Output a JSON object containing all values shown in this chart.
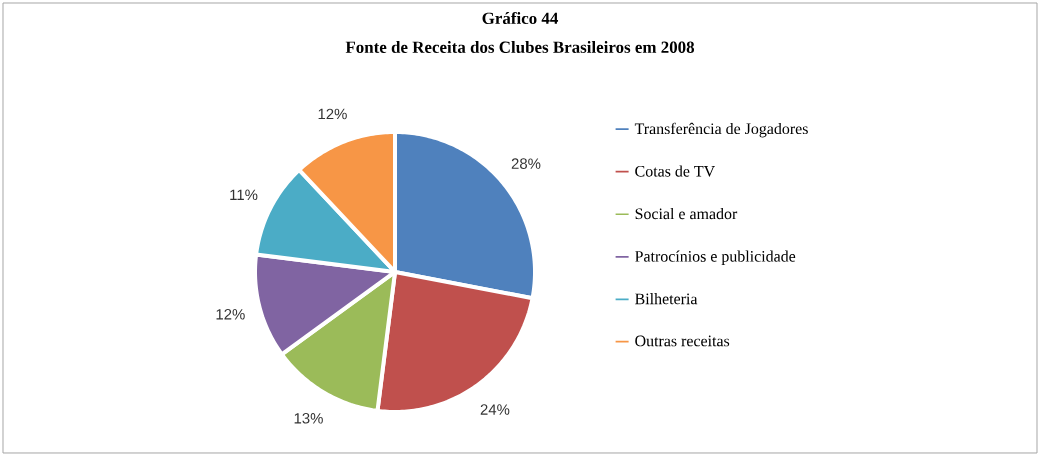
{
  "chart_data": {
    "type": "pie",
    "title": "Gráfico 44",
    "subtitle": "Fonte de Receita dos Clubes Brasileiros em 2008",
    "categories": [
      "Transferência de Jogadores",
      "Cotas de TV",
      "Social e amador",
      "Patrocínios e publicidade",
      "Bilheteria",
      "Outras receitas"
    ],
    "values": [
      28,
      24,
      13,
      12,
      11,
      12
    ],
    "colors": [
      "#4f81bd",
      "#c0504d",
      "#9bbb59",
      "#8064a2",
      "#4bacc6",
      "#f79646"
    ],
    "value_labels": [
      "28%",
      "24%",
      "13%",
      "12%",
      "11%",
      "12%"
    ],
    "legend": "right"
  }
}
